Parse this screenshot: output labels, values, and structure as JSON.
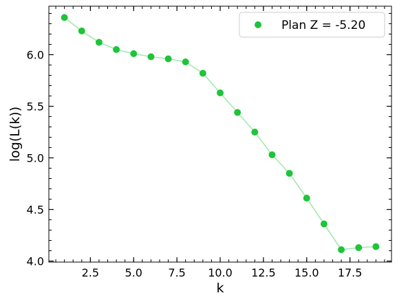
{
  "chart_data": {
    "type": "line",
    "title": "",
    "xlabel": "k",
    "ylabel": "log(L(k))",
    "xlim": [
      0.1,
      19.9
    ],
    "ylim": [
      3.99,
      6.47
    ],
    "x_ticks": [
      2.5,
      5.0,
      7.5,
      10.0,
      12.5,
      15.0,
      17.5
    ],
    "x_tick_labels": [
      "2.5",
      "5.0",
      "7.5",
      "10.0",
      "12.5",
      "15.0",
      "17.5"
    ],
    "x_minor_step": 0.5,
    "y_ticks": [
      4.0,
      4.5,
      5.0,
      5.5,
      6.0
    ],
    "y_tick_labels": [
      "4.0",
      "4.5",
      "5.0",
      "5.5",
      "6.0"
    ],
    "y_minor_step": 0.1,
    "grid": false,
    "legend_position": "top-right",
    "series": [
      {
        "name": "Plan Z = -5.20",
        "marker_color": "#1ec43a",
        "line_color": "#a3e8ae",
        "x": [
          1,
          2,
          3,
          4,
          5,
          6,
          7,
          8,
          9,
          10,
          11,
          12,
          13,
          14,
          15,
          16,
          17,
          18,
          19
        ],
        "y": [
          6.36,
          6.23,
          6.12,
          6.05,
          6.01,
          5.98,
          5.96,
          5.93,
          5.82,
          5.63,
          5.44,
          5.25,
          5.03,
          4.85,
          4.61,
          4.36,
          4.11,
          4.13,
          4.14
        ]
      }
    ]
  }
}
